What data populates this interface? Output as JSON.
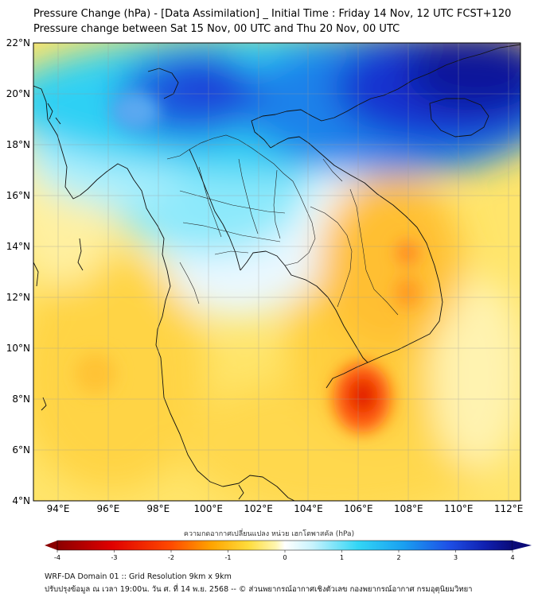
{
  "title_line1": "Pressure Change (hPa) - [Data Assimilation] _ Initial Time : Friday 14 Nov, 12 UTC FCST+120",
  "title_line2": "Pressure change between Sat 15 Nov, 00 UTC and Thu 20 Nov, 00 UTC",
  "map": {
    "lat_ticks": [
      "4°N",
      "6°N",
      "8°N",
      "10°N",
      "12°N",
      "14°N",
      "16°N",
      "18°N",
      "20°N",
      "22°N"
    ],
    "lon_ticks": [
      "94°E",
      "96°E",
      "98°E",
      "100°E",
      "102°E",
      "104°E",
      "106°E",
      "108°E",
      "110°E",
      "112°E"
    ],
    "lat_range": [
      4,
      22
    ],
    "lon_range": [
      93,
      112.5
    ],
    "grid": true
  },
  "colorbar": {
    "title": "ความกดอากาศเปลี่ยนแปลง หน่วย เฮกโตพาสคัล (hPa)",
    "ticks": [
      "-4",
      "-3",
      "-2",
      "-1",
      "0",
      "1",
      "2",
      "3",
      "4"
    ],
    "range": [
      -4,
      4
    ],
    "colors": {
      "deep_red": "#8b0000",
      "red": "#ff2a00",
      "orange": "#ffa500",
      "yellow": "#ffe84d",
      "white": "#ffffff",
      "cyan": "#33d6f5",
      "blue": "#1e50e6",
      "navy": "#0a0a78"
    }
  },
  "footer_line1": "WRF-DA Domain 01 :: Grid Resolution 9km x 9km",
  "footer_line2": "ปรับปรุงข้อมูล ณ เวลา 19:00น. วัน ศ. ที่ 14 พ.ย. 2568 -- © ส่วนพยากรณ์อากาศเชิงตัวเลข กองพยากรณ์อากาศ กรมอุตุนิยมวิทยา"
}
